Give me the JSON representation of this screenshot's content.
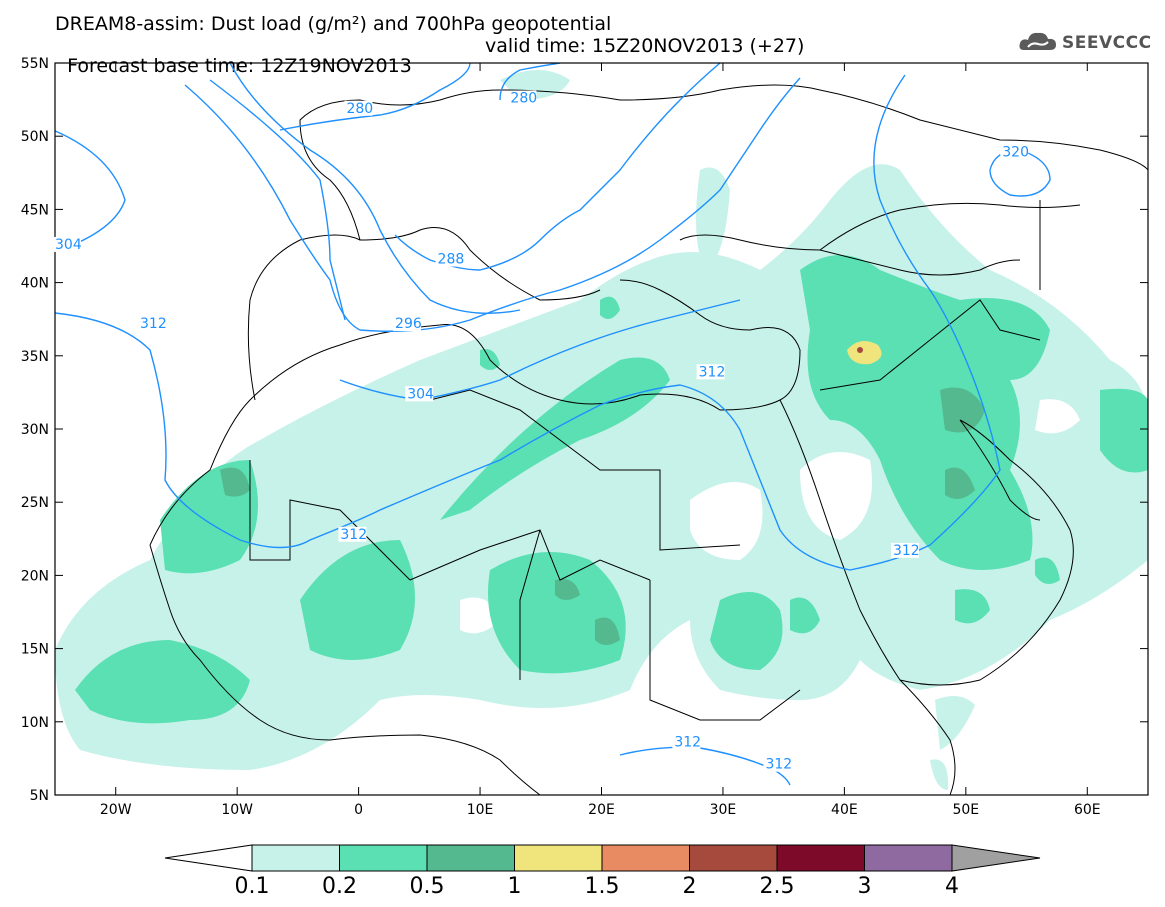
{
  "title": {
    "line1": "DREAM8-assim: Dust load (g/m²) and 700hPa geopotential",
    "base_time": "Forecast base time: 12Z19NOV2013",
    "valid_time": "valid time: 15Z20NOV2013 (+27)"
  },
  "logo": {
    "text": "SEEVCCC",
    "icon": "cloud-icon"
  },
  "map": {
    "lon_range": [
      -25,
      65
    ],
    "lat_range": [
      5,
      55
    ],
    "lat_labels": [
      "55N",
      "50N",
      "45N",
      "40N",
      "35N",
      "30N",
      "25N",
      "20N",
      "15N",
      "10N",
      "5N"
    ],
    "lon_labels": [
      "20W",
      "10W",
      "0",
      "10E",
      "20E",
      "30E",
      "40E",
      "50E",
      "60E"
    ]
  },
  "contour_labels": [
    {
      "text": "280",
      "lon": -1,
      "lat": 51.6
    },
    {
      "text": "280",
      "lon": 12.5,
      "lat": 52.3
    },
    {
      "text": "320",
      "lon": 53,
      "lat": 48.6
    },
    {
      "text": "304",
      "lon": -25,
      "lat": 42.3
    },
    {
      "text": "288",
      "lon": 6.5,
      "lat": 41.3
    },
    {
      "text": "312",
      "lon": -18,
      "lat": 36.9
    },
    {
      "text": "296",
      "lon": 3,
      "lat": 36.9
    },
    {
      "text": "304",
      "lon": 4,
      "lat": 32.1
    },
    {
      "text": "312",
      "lon": 28,
      "lat": 33.6
    },
    {
      "text": "312",
      "lon": -1.5,
      "lat": 22.5
    },
    {
      "text": "312",
      "lon": 44,
      "lat": 21.4
    },
    {
      "text": "312",
      "lon": 26,
      "lat": 8.3
    },
    {
      "text": "312",
      "lon": 33.5,
      "lat": 6.8
    }
  ],
  "colorbar": {
    "labels": [
      "0.1",
      "0.2",
      "0.5",
      "1",
      "1.5",
      "2",
      "2.5",
      "3",
      "4"
    ],
    "colors": [
      "#c7f2e9",
      "#5be0b3",
      "#54b98f",
      "#f0e57c",
      "#e88b63",
      "#a64a3e",
      "#7e0a2a",
      "#8e6aa0",
      "#a0a0a0"
    ],
    "low_color": "#ffffff",
    "high_color": "#a0a0a0"
  }
}
